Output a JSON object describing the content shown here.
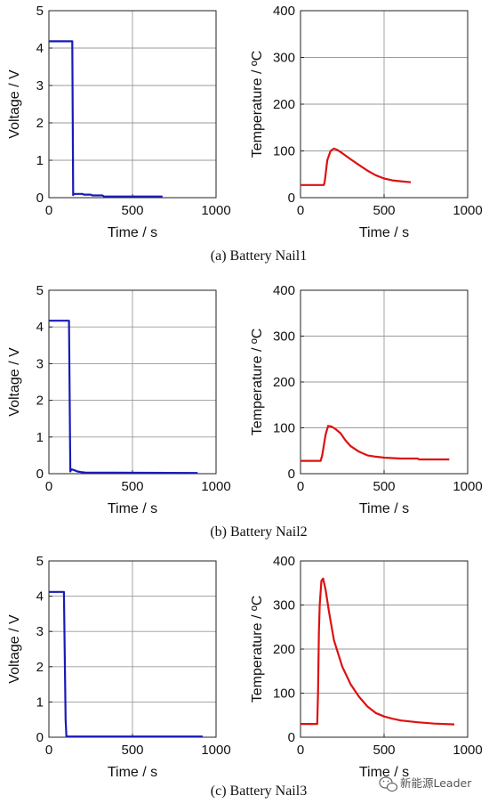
{
  "captions": [
    "(a)  Battery Nail1",
    "(b)  Battery Nail2",
    "(c)  Battery Nail3"
  ],
  "watermark": {
    "text": "新能源Leader",
    "icon": "wechat-icon"
  },
  "chart_data": [
    {
      "type": "line",
      "id": "a-voltage",
      "xlabel": "Time / s",
      "ylabel": "Voltage / V",
      "xlim": [
        0,
        1000
      ],
      "ylim": [
        0,
        5
      ],
      "xticks": [
        0,
        500,
        1000
      ],
      "yticks": [
        0,
        1,
        2,
        3,
        4,
        5
      ],
      "grid": true,
      "color": "#1a1ab8",
      "series": [
        {
          "x": [
            0,
            140,
            145,
            150,
            200,
            210,
            250,
            260,
            320,
            330,
            680
          ],
          "y": [
            4.18,
            4.18,
            0.07,
            0.1,
            0.1,
            0.08,
            0.08,
            0.06,
            0.06,
            0.03,
            0.03
          ]
        }
      ]
    },
    {
      "type": "line",
      "id": "a-temperature",
      "xlabel": "Time / s",
      "ylabel": "Temperature / ºC",
      "xlim": [
        0,
        1000
      ],
      "ylim": [
        0,
        400
      ],
      "xticks": [
        0,
        500,
        1000
      ],
      "yticks": [
        0,
        100,
        200,
        300,
        400
      ],
      "grid": true,
      "color": "#dd1111",
      "series": [
        {
          "x": [
            0,
            140,
            145,
            160,
            180,
            200,
            220,
            250,
            300,
            350,
            400,
            450,
            500,
            550,
            600,
            660
          ],
          "y": [
            27,
            27,
            35,
            80,
            100,
            105,
            102,
            95,
            82,
            70,
            58,
            48,
            41,
            37,
            35,
            33
          ]
        }
      ]
    },
    {
      "type": "line",
      "id": "b-voltage",
      "xlabel": "Time / s",
      "ylabel": "Voltage / V",
      "xlim": [
        0,
        1000
      ],
      "ylim": [
        0,
        5
      ],
      "xticks": [
        0,
        500,
        1000
      ],
      "yticks": [
        0,
        1,
        2,
        3,
        4,
        5
      ],
      "grid": true,
      "color": "#1a1ab8",
      "series": [
        {
          "x": [
            0,
            120,
            128,
            135,
            160,
            170,
            200,
            220,
            890
          ],
          "y": [
            4.17,
            4.17,
            0.06,
            0.12,
            0.08,
            0.06,
            0.04,
            0.03,
            0.02
          ]
        }
      ]
    },
    {
      "type": "line",
      "id": "b-temperature",
      "xlabel": "Time / s",
      "ylabel": "Temperature / ºC",
      "xlim": [
        0,
        1000
      ],
      "ylim": [
        0,
        400
      ],
      "xticks": [
        0,
        500,
        1000
      ],
      "yticks": [
        0,
        100,
        200,
        300,
        400
      ],
      "grid": true,
      "color": "#dd1111",
      "series": [
        {
          "x": [
            0,
            120,
            130,
            150,
            165,
            185,
            210,
            240,
            270,
            300,
            350,
            400,
            450,
            500,
            550,
            600,
            700,
            710,
            890
          ],
          "y": [
            28,
            28,
            40,
            85,
            104,
            103,
            97,
            88,
            72,
            60,
            48,
            40,
            37,
            35,
            34,
            33,
            33,
            31,
            31
          ]
        }
      ]
    },
    {
      "type": "line",
      "id": "c-voltage",
      "xlabel": "Time / s",
      "ylabel": "Voltage / V",
      "xlim": [
        0,
        1000
      ],
      "ylim": [
        0,
        5
      ],
      "xticks": [
        0,
        500,
        1000
      ],
      "yticks": [
        0,
        1,
        2,
        3,
        4,
        5
      ],
      "grid": true,
      "color": "#1a1ab8",
      "series": [
        {
          "x": [
            0,
            90,
            95,
            100,
            105,
            920
          ],
          "y": [
            4.12,
            4.12,
            2.2,
            0.5,
            0.02,
            0.02
          ]
        }
      ]
    },
    {
      "type": "line",
      "id": "c-temperature",
      "xlabel": "Time / s",
      "ylabel": "Temperature / ºC",
      "xlim": [
        0,
        1000
      ],
      "ylim": [
        0,
        400
      ],
      "xticks": [
        0,
        500,
        1000
      ],
      "yticks": [
        0,
        100,
        200,
        300,
        400
      ],
      "grid": true,
      "color": "#dd1111",
      "series": [
        {
          "x": [
            0,
            100,
            105,
            110,
            115,
            125,
            135,
            150,
            170,
            200,
            250,
            300,
            350,
            400,
            450,
            500,
            550,
            600,
            700,
            800,
            920
          ],
          "y": [
            30,
            30,
            100,
            240,
            300,
            355,
            360,
            335,
            285,
            220,
            160,
            120,
            92,
            70,
            55,
            47,
            42,
            38,
            34,
            31,
            29
          ]
        }
      ]
    }
  ]
}
